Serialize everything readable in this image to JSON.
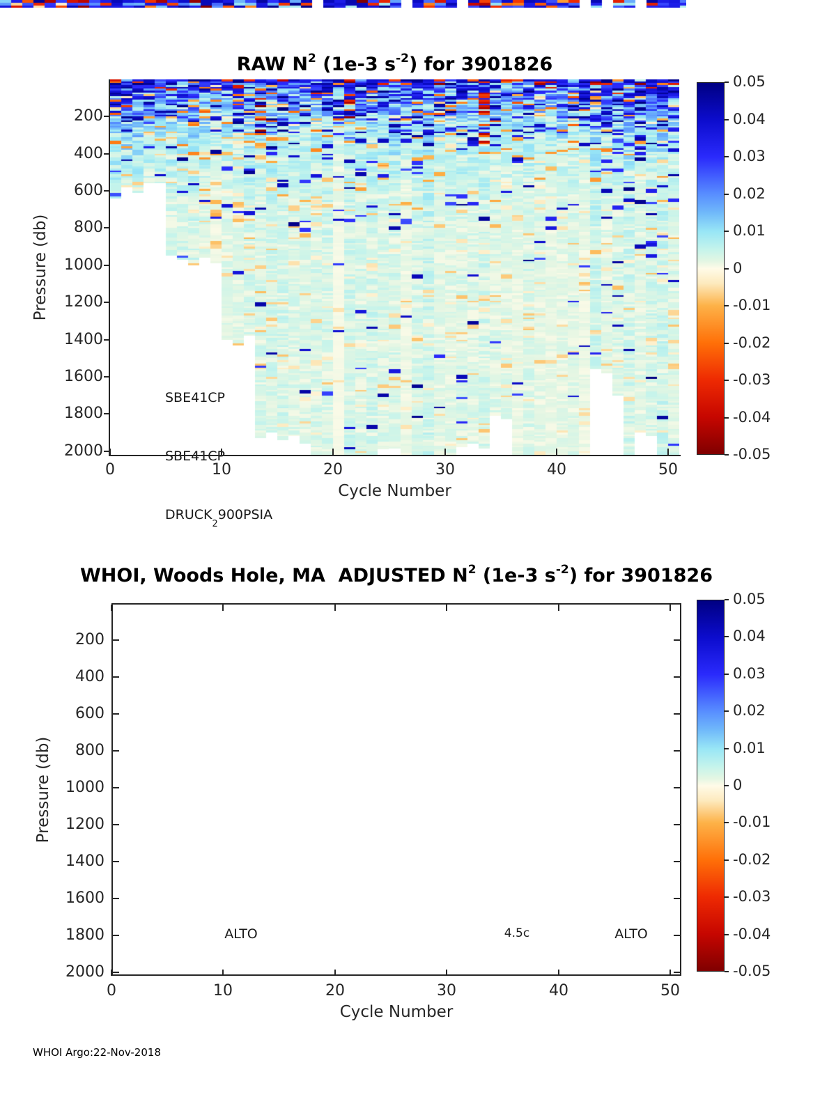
{
  "page": {
    "background": "#ffffff",
    "text_color": "#262626",
    "footer": "WHOI Argo:22-Nov-2018"
  },
  "chart_data": [
    {
      "id": "raw_n2",
      "type": "heatmap",
      "title": {
        "pre": "RAW N",
        "sup1": "2",
        "mid": " (1e-3 s",
        "sup2": "-2",
        "post": ") for 3901826"
      },
      "x": {
        "label": "Cycle Number",
        "ticks": [
          0,
          10,
          20,
          30,
          40,
          50
        ],
        "range": [
          0,
          51
        ]
      },
      "y": {
        "label": "Pressure (db)",
        "ticks": [
          200,
          400,
          600,
          800,
          1000,
          1200,
          1400,
          1600,
          1800,
          2000
        ],
        "range": [
          0,
          2020
        ],
        "reversed": true
      },
      "colorbar": {
        "range": [
          -0.05,
          0.05
        ],
        "ticks": [
          "0.05",
          "0.04",
          "0.03",
          "0.02",
          "0.01",
          "0",
          "-0.01",
          "-0.02",
          "-0.03",
          "-0.04",
          "-0.05"
        ]
      },
      "sensor_annotations": {
        "line1": "SBE41CP",
        "line2": "SBE41CP",
        "line3_pre": "DRUCK",
        "line3_sub": "2",
        "line3_post": "900PSIA"
      },
      "legend": "values in 1e-3 s^-2, strong positive (blue/navy) stratification 0-300 db, weak (pale cyan/mint) below 400 db, scattered negative (orange/red) streaks",
      "colormap_stops": [
        [
          0.05,
          0,
          0,
          130
        ],
        [
          0.04,
          12,
          12,
          205
        ],
        [
          0.03,
          42,
          42,
          252
        ],
        [
          0.02,
          88,
          142,
          255
        ],
        [
          0.015,
          112,
          185,
          250
        ],
        [
          0.01,
          152,
          230,
          246
        ],
        [
          0.005,
          198,
          244,
          235
        ],
        [
          0.002,
          227,
          246,
          227
        ],
        [
          0.0,
          255,
          251,
          232
        ],
        [
          -0.004,
          253,
          234,
          190
        ],
        [
          -0.01,
          253,
          178,
          72
        ],
        [
          -0.02,
          255,
          112,
          8
        ],
        [
          -0.03,
          238,
          42,
          2
        ],
        [
          -0.04,
          198,
          6,
          0
        ],
        [
          -0.05,
          128,
          0,
          0
        ]
      ],
      "max_depth_per_cycle": [
        640,
        580,
        610,
        560,
        560,
        950,
        970,
        1000,
        960,
        990,
        1400,
        1430,
        1380,
        1930,
        1900,
        1940,
        1920,
        1960,
        2020,
        2020,
        2020,
        2020,
        2020,
        2020,
        1990,
        1985,
        2020,
        2020,
        2020,
        2020,
        2020,
        1980,
        1960,
        1985,
        1810,
        1830,
        2020,
        2020,
        2020,
        2020,
        2020,
        2020,
        2020,
        1560,
        1580,
        1700,
        2020,
        1900,
        1920,
        2020,
        2020
      ],
      "noise_model": {
        "seed": 90218,
        "surface_scale_db": 210,
        "navy_base": 0.42,
        "navy_floor": 0.015,
        "warm_base": 0.055,
        "warm_surface": 0.09,
        "warm_scale_db": 260,
        "bg_base": 0.0035,
        "bg_surface_amp": 0.032,
        "top_red_p": 0.16,
        "navy_boost_cycles": [
          [
            19,
            28,
            1.25
          ],
          [
            45,
            51,
            1.5
          ]
        ],
        "special_columns": [
          {
            "cycle": 34,
            "band": [
              60,
              420
            ],
            "p": 0.4
          },
          {
            "cycle": 14,
            "band": [
              40,
              320
            ],
            "p": 0.22
          },
          {
            "cycle": 6,
            "band": [
              0,
              120
            ],
            "p": 0.18
          },
          {
            "cycle": 22,
            "band": [
              80,
              200
            ],
            "p": 0.15
          }
        ]
      },
      "annotations": []
    },
    {
      "id": "adjusted_n2",
      "type": "heatmap",
      "empty": true,
      "title": {
        "pre": "WHOI, Woods Hole, MA  ADJUSTED N",
        "sup1": "2",
        "mid": " (1e-3 s",
        "sup2": "-2",
        "post": ") for 3901826"
      },
      "x": {
        "label": "Cycle Number",
        "ticks": [
          0,
          10,
          20,
          30,
          40,
          50
        ],
        "range": [
          0,
          51
        ]
      },
      "y": {
        "label": "Pressure (db)",
        "ticks": [
          200,
          400,
          600,
          800,
          1000,
          1200,
          1400,
          1600,
          1800,
          2000
        ],
        "range": [
          0,
          2020
        ],
        "reversed": true
      },
      "colorbar": {
        "range": [
          -0.05,
          0.05
        ],
        "ticks": [
          "0.05",
          "0.04",
          "0.03",
          "0.02",
          "0.01",
          "0",
          "-0.01",
          "-0.02",
          "-0.03",
          "-0.04",
          "-0.05"
        ]
      },
      "annotations": [
        {
          "text": "ALTO",
          "cycle": 11.6,
          "pressure": 1800,
          "size": 19
        },
        {
          "text": "4.5c",
          "cycle": 36.3,
          "pressure": 1800,
          "size": 17
        },
        {
          "text": "ALTO",
          "cycle": 46.5,
          "pressure": 1800,
          "size": 19
        }
      ]
    }
  ]
}
